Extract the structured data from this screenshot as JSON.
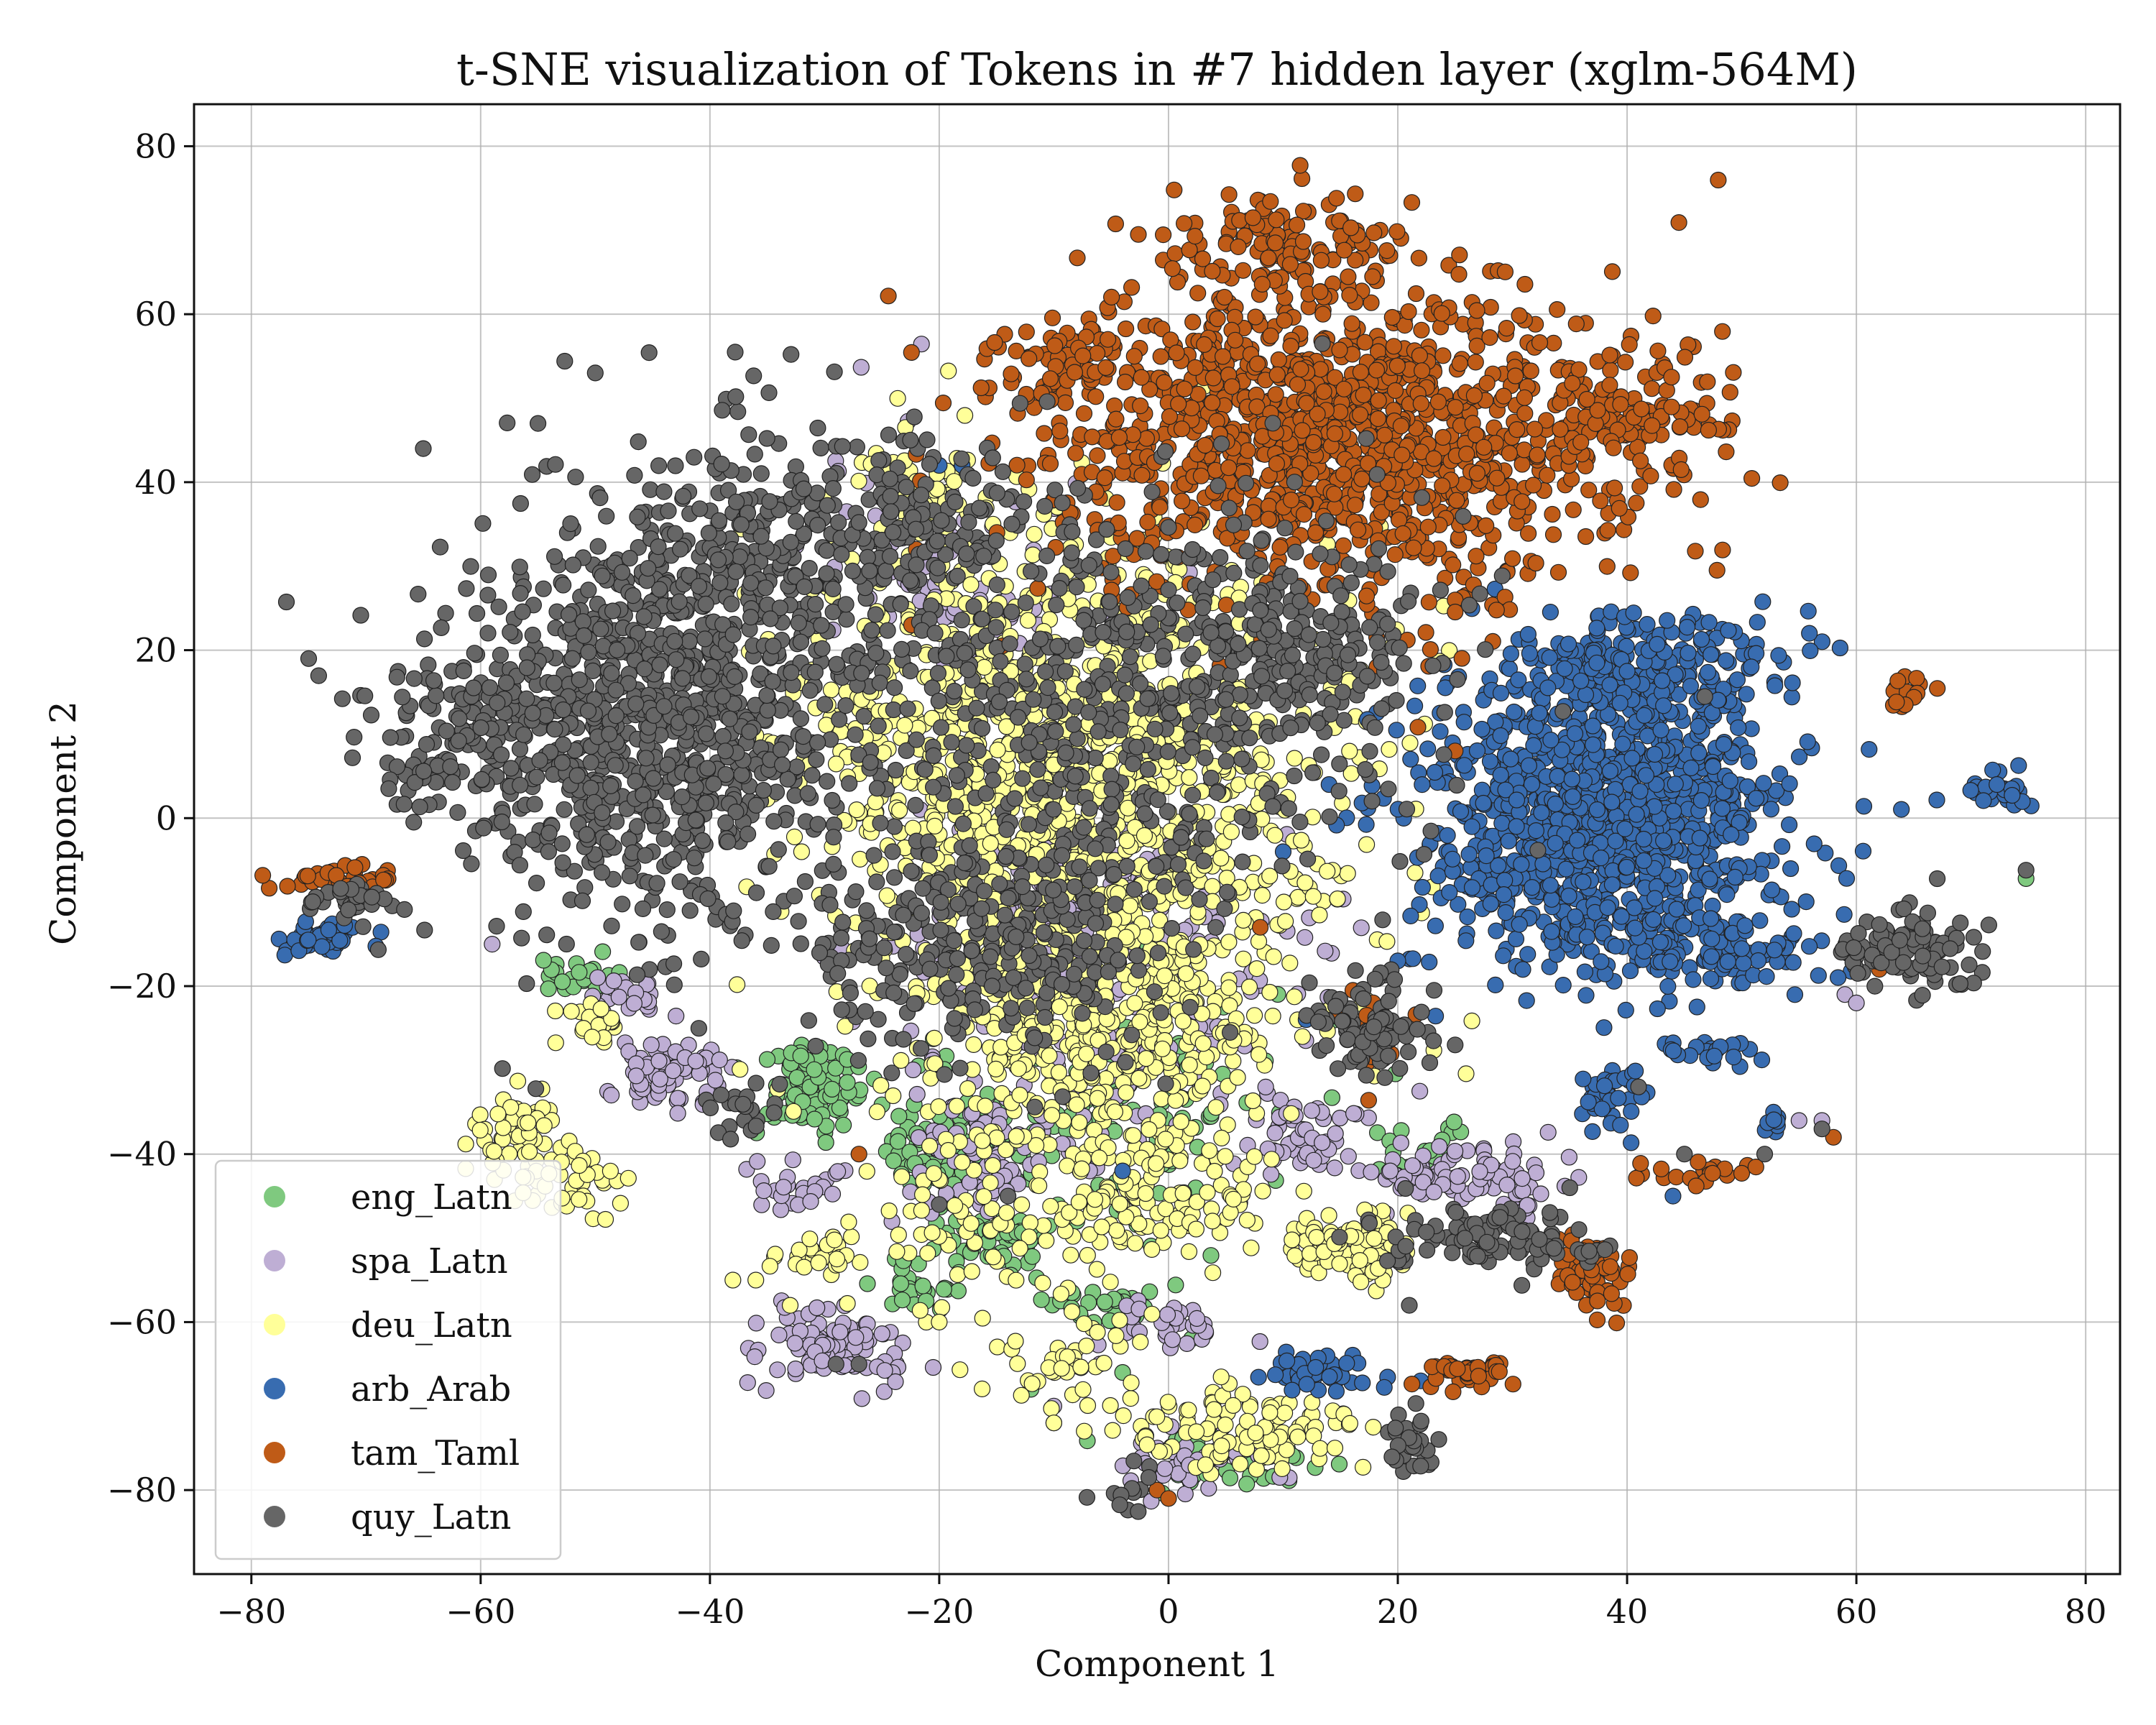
{
  "chart_data": {
    "type": "scatter",
    "title": "t-SNE visualization of Tokens in #7 hidden layer (xglm-564M)",
    "xlabel": "Component 1",
    "ylabel": "Component 2",
    "xlim": [
      -85,
      83
    ],
    "ylim": [
      -90,
      85
    ],
    "xticks": [
      -80,
      -60,
      -40,
      -20,
      0,
      20,
      40,
      60,
      80
    ],
    "yticks": [
      -80,
      -60,
      -40,
      -20,
      0,
      20,
      40,
      60,
      80
    ],
    "grid": true,
    "legend_position": "bottom-left",
    "series": [
      {
        "name": "eng_Latn",
        "color": "#7fc97f",
        "clusters": [
          {
            "cx": -52,
            "cy": -19,
            "sx": 2,
            "sy": 1.5,
            "n": 25
          },
          {
            "cx": -31,
            "cy": -32,
            "sx": 3,
            "sy": 3,
            "n": 90
          },
          {
            "cx": -20,
            "cy": -40,
            "sx": 4,
            "sy": 3,
            "n": 80
          },
          {
            "cx": -15,
            "cy": -50,
            "sx": 3,
            "sy": 2,
            "n": 40
          },
          {
            "cx": -22,
            "cy": -56,
            "sx": 2,
            "sy": 1.5,
            "n": 25
          },
          {
            "cx": -6,
            "cy": -58,
            "sx": 3,
            "sy": 2,
            "n": 30
          },
          {
            "cx": 4,
            "cy": -77,
            "sx": 5,
            "sy": 2,
            "n": 40
          },
          {
            "cx": -5,
            "cy": -35,
            "sx": 10,
            "sy": 10,
            "n": 120
          },
          {
            "cx": 22,
            "cy": -40,
            "sx": 3,
            "sy": 2,
            "n": 20
          }
        ],
        "points": [
          [
            74.8,
            -7.2
          ],
          [
            -8,
            -48
          ],
          [
            2,
            -62
          ],
          [
            -10,
            -72
          ],
          [
            -12,
            -68
          ],
          [
            -4,
            -66
          ]
        ]
      },
      {
        "name": "spa_Latn",
        "color": "#beaed4",
        "clusters": [
          {
            "cx": -47,
            "cy": -21,
            "sx": 2,
            "sy": 1.5,
            "n": 25
          },
          {
            "cx": -44,
            "cy": -30,
            "sx": 3,
            "sy": 2.5,
            "n": 70
          },
          {
            "cx": -33,
            "cy": -44,
            "sx": 3,
            "sy": 2,
            "n": 25
          },
          {
            "cx": -29,
            "cy": -63,
            "sx": 4,
            "sy": 2.5,
            "n": 100
          },
          {
            "cx": -15,
            "cy": -40,
            "sx": 5,
            "sy": 4,
            "n": 80
          },
          {
            "cx": -12,
            "cy": -10,
            "sx": 6,
            "sy": 5,
            "n": 110
          },
          {
            "cx": -20,
            "cy": 30,
            "sx": 8,
            "sy": 10,
            "n": 80
          },
          {
            "cx": 0,
            "cy": -60,
            "sx": 3,
            "sy": 2,
            "n": 30
          },
          {
            "cx": 3,
            "cy": -77,
            "sx": 4,
            "sy": 2,
            "n": 40
          },
          {
            "cx": 12,
            "cy": -38,
            "sx": 3,
            "sy": 2.5,
            "n": 50
          },
          {
            "cx": 26,
            "cy": -43,
            "sx": 5,
            "sy": 2.5,
            "n": 100
          },
          {
            "cx": -5,
            "cy": -20,
            "sx": 12,
            "sy": 12,
            "n": 180
          }
        ],
        "points": [
          [
            -59,
            -15
          ],
          [
            55,
            -36
          ],
          [
            57,
            -36
          ],
          [
            59,
            -21
          ],
          [
            60,
            -22
          ],
          [
            -10,
            -70
          ],
          [
            -6,
            -65
          ]
        ]
      },
      {
        "name": "deu_Latn",
        "color": "#ffff99",
        "clusters": [
          {
            "cx": -5,
            "cy": 0,
            "sx": 14,
            "sy": 18,
            "n": 900
          },
          {
            "cx": -15,
            "cy": 10,
            "sx": 10,
            "sy": 15,
            "n": 350
          },
          {
            "cx": -5,
            "cy": -25,
            "sx": 8,
            "sy": 8,
            "n": 300
          },
          {
            "cx": -57,
            "cy": -39,
            "sx": 3,
            "sy": 4,
            "n": 70
          },
          {
            "cx": -51,
            "cy": -44,
            "sx": 2,
            "sy": 2,
            "n": 25
          },
          {
            "cx": -50,
            "cy": -25,
            "sx": 1.5,
            "sy": 1.5,
            "n": 20
          },
          {
            "cx": -30,
            "cy": -52,
            "sx": 3,
            "sy": 1.5,
            "n": 25
          },
          {
            "cx": -15,
            "cy": -45,
            "sx": 8,
            "sy": 10,
            "n": 120
          },
          {
            "cx": 0,
            "cy": -45,
            "sx": 6,
            "sy": 5,
            "n": 110
          },
          {
            "cx": 6,
            "cy": -73,
            "sx": 6,
            "sy": 3,
            "n": 110
          },
          {
            "cx": 16,
            "cy": -51,
            "sx": 3.5,
            "sy": 2.5,
            "n": 90
          },
          {
            "cx": -8,
            "cy": -65,
            "sx": 5,
            "sy": 4,
            "n": 40
          },
          {
            "cx": -22,
            "cy": 40,
            "sx": 3,
            "sy": 3,
            "n": 40
          }
        ],
        "points": [
          [
            -38,
            -55
          ],
          [
            -36,
            -55
          ],
          [
            -33,
            -58
          ],
          [
            -20,
            -60
          ],
          [
            -10,
            -72
          ]
        ]
      },
      {
        "name": "arb_Arab",
        "color": "#386cb0",
        "clusters": [
          {
            "cx": 38,
            "cy": 0,
            "sx": 9,
            "sy": 10,
            "n": 1100
          },
          {
            "cx": 42,
            "cy": 18,
            "sx": 7,
            "sy": 4,
            "n": 200
          },
          {
            "cx": 48,
            "cy": -15,
            "sx": 5,
            "sy": 3,
            "n": 90
          },
          {
            "cx": -74,
            "cy": -14,
            "sx": 2,
            "sy": 1.2,
            "n": 50
          },
          {
            "cx": 72,
            "cy": 3,
            "sx": 2.5,
            "sy": 1.5,
            "n": 25
          },
          {
            "cx": 39,
            "cy": -33,
            "sx": 1.5,
            "sy": 2,
            "n": 35
          },
          {
            "cx": 48,
            "cy": -28,
            "sx": 2,
            "sy": 0.8,
            "n": 20
          },
          {
            "cx": 13,
            "cy": -66,
            "sx": 3,
            "sy": 1.5,
            "n": 45
          },
          {
            "cx": 53,
            "cy": -36,
            "sx": 1,
            "sy": 1,
            "n": 8
          }
        ],
        "points": [
          [
            -20,
            42
          ],
          [
            -18,
            42
          ],
          [
            14,
            4
          ],
          [
            10,
            -4
          ],
          [
            12,
            -24
          ],
          [
            20,
            -17
          ],
          [
            44,
            -45
          ],
          [
            22,
            -67
          ],
          [
            -4,
            -42
          ]
        ]
      },
      {
        "name": "tam_Taml",
        "color": "#bf5b17",
        "clusters": [
          {
            "cx": 15,
            "cy": 45,
            "sx": 15,
            "sy": 11,
            "n": 1200
          },
          {
            "cx": 10,
            "cy": 68,
            "sx": 6,
            "sy": 4,
            "n": 120
          },
          {
            "cx": -9,
            "cy": 54,
            "sx": 3,
            "sy": 3,
            "n": 60
          },
          {
            "cx": 40,
            "cy": 48,
            "sx": 5,
            "sy": 4,
            "n": 80
          },
          {
            "cx": -72,
            "cy": -7,
            "sx": 3,
            "sy": 1,
            "n": 40
          },
          {
            "cx": 37,
            "cy": -54,
            "sx": 2,
            "sy": 2.5,
            "n": 60
          },
          {
            "cx": 26,
            "cy": -66,
            "sx": 3,
            "sy": 1,
            "n": 45
          },
          {
            "cx": 47,
            "cy": -42,
            "sx": 3,
            "sy": 1,
            "n": 20
          },
          {
            "cx": 65,
            "cy": 15,
            "sx": 1.5,
            "sy": 1.5,
            "n": 15
          },
          {
            "cx": 18,
            "cy": -26,
            "sx": 2,
            "sy": 3,
            "n": 20
          }
        ],
        "points": [
          [
            -27,
            -40
          ],
          [
            -25,
            30
          ],
          [
            -22,
            32
          ],
          [
            -3,
            -80
          ],
          [
            -1,
            -80
          ],
          [
            0,
            -81
          ],
          [
            25,
            8
          ],
          [
            8,
            -13
          ],
          [
            58,
            -38
          ],
          [
            62,
            -18
          ]
        ]
      },
      {
        "name": "quy_Latn",
        "color": "#666666",
        "clusters": [
          {
            "cx": -45,
            "cy": 12,
            "sx": 10,
            "sy": 15,
            "n": 900
          },
          {
            "cx": -35,
            "cy": 30,
            "sx": 8,
            "sy": 10,
            "n": 250
          },
          {
            "cx": -62,
            "cy": 10,
            "sx": 5,
            "sy": 6,
            "n": 120
          },
          {
            "cx": -5,
            "cy": 15,
            "sx": 15,
            "sy": 15,
            "n": 550
          },
          {
            "cx": -15,
            "cy": -15,
            "sx": 10,
            "sy": 8,
            "n": 300
          },
          {
            "cx": 10,
            "cy": 20,
            "sx": 8,
            "sy": 6,
            "n": 180
          },
          {
            "cx": -22,
            "cy": 35,
            "sx": 6,
            "sy": 5,
            "n": 100
          },
          {
            "cx": -72,
            "cy": -10,
            "sx": 2.5,
            "sy": 1.2,
            "n": 35
          },
          {
            "cx": 65,
            "cy": -16,
            "sx": 3.5,
            "sy": 3,
            "n": 100
          },
          {
            "cx": 18,
            "cy": -25,
            "sx": 3,
            "sy": 4,
            "n": 90
          },
          {
            "cx": 28,
            "cy": -50,
            "sx": 6,
            "sy": 2,
            "n": 110
          },
          {
            "cx": 21,
            "cy": -74,
            "sx": 1.2,
            "sy": 2,
            "n": 30
          },
          {
            "cx": -37,
            "cy": -35,
            "sx": 2,
            "sy": 2,
            "n": 20
          },
          {
            "cx": -3,
            "cy": -80,
            "sx": 1.5,
            "sy": 1.5,
            "n": 12
          }
        ],
        "points": [
          [
            -55,
            47
          ],
          [
            -50,
            53
          ],
          [
            -65,
            44
          ],
          [
            -75,
            19
          ],
          [
            74.8,
            -6.2
          ],
          [
            -27,
            -65
          ],
          [
            -29,
            -65
          ],
          [
            -20,
            -46
          ],
          [
            -14,
            -45
          ],
          [
            35,
            -44
          ],
          [
            52,
            -40
          ],
          [
            57,
            -37
          ],
          [
            21,
            -58
          ],
          [
            25,
            -27
          ],
          [
            41,
            -32
          ],
          [
            45,
            -40
          ]
        ]
      }
    ]
  }
}
